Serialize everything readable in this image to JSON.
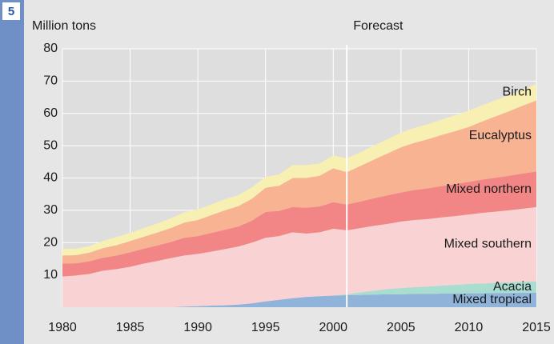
{
  "chart_data": {
    "type": "stacked_area",
    "badge": "5",
    "y_label": "Million tons",
    "annotations": [
      {
        "text": "Forecast",
        "x": 2001
      }
    ],
    "x": [
      1980,
      1981,
      1982,
      1983,
      1984,
      1985,
      1986,
      1987,
      1988,
      1989,
      1990,
      1991,
      1992,
      1993,
      1994,
      1995,
      1996,
      1997,
      1998,
      1999,
      2000,
      2001,
      2002,
      2003,
      2004,
      2005,
      2006,
      2007,
      2008,
      2009,
      2010,
      2011,
      2012,
      2013,
      2014,
      2015
    ],
    "xlim": [
      1980,
      2015
    ],
    "xticks": [
      1980,
      1985,
      1990,
      1995,
      2000,
      2005,
      2010,
      2015
    ],
    "ylim": [
      0,
      80
    ],
    "yticks": [
      10,
      20,
      30,
      40,
      50,
      60,
      70,
      80
    ],
    "grid": true,
    "series": [
      {
        "name": "Mixed tropical",
        "color": "#8fb3d9",
        "values": [
          0,
          0,
          0,
          0,
          0,
          0,
          0,
          0,
          0,
          0.2,
          0.3,
          0.5,
          0.6,
          0.8,
          1.2,
          1.8,
          2.3,
          2.8,
          3.2,
          3.4,
          3.6,
          3.7,
          3.8,
          3.9,
          4.0,
          4.0,
          4.1,
          4.1,
          4.2,
          4.2,
          4.3,
          4.3,
          4.4,
          4.4,
          4.5,
          4.5
        ]
      },
      {
        "name": "Acacia",
        "color": "#a9ddcf",
        "values": [
          0,
          0,
          0,
          0,
          0,
          0,
          0,
          0,
          0,
          0,
          0,
          0,
          0,
          0,
          0,
          0,
          0,
          0,
          0,
          0,
          0,
          0.3,
          0.8,
          1.2,
          1.6,
          1.9,
          2.1,
          2.3,
          2.5,
          2.7,
          2.9,
          3.0,
          3.2,
          3.3,
          3.4,
          3.5
        ]
      },
      {
        "name": "Mixed southern",
        "color": "#f9d3d3",
        "values": [
          9.5,
          9.8,
          10.3,
          11.3,
          11.8,
          12.5,
          13.5,
          14.3,
          15.2,
          15.8,
          16.2,
          16.7,
          17.4,
          18.0,
          18.8,
          19.7,
          19.7,
          20.4,
          19.6,
          19.8,
          20.7,
          19.8,
          19.9,
          20.1,
          20.2,
          20.6,
          20.8,
          20.9,
          21.1,
          21.3,
          21.5,
          21.9,
          22.0,
          22.3,
          22.6,
          23.0
        ]
      },
      {
        "name": "Mixed northern",
        "color": "#f28686",
        "values": [
          4.0,
          3.8,
          3.9,
          4.0,
          4.2,
          4.5,
          4.6,
          4.8,
          5.0,
          5.5,
          5.5,
          5.8,
          6.0,
          6.2,
          6.8,
          8.0,
          7.8,
          7.8,
          8.0,
          8.0,
          8.2,
          8.0,
          8.2,
          8.5,
          8.8,
          9.0,
          9.3,
          9.5,
          9.7,
          9.9,
          10.1,
          10.3,
          10.5,
          10.7,
          10.9,
          11.0
        ]
      },
      {
        "name": "Eucalyptus",
        "color": "#f7b392",
        "values": [
          2.5,
          2.5,
          2.7,
          3.0,
          3.2,
          3.5,
          3.7,
          4.0,
          4.3,
          4.7,
          5.0,
          5.5,
          6.0,
          6.3,
          6.8,
          7.5,
          7.8,
          9.0,
          9.2,
          9.5,
          10.5,
          10.0,
          11.0,
          12.0,
          13.0,
          14.0,
          14.6,
          15.2,
          15.8,
          16.4,
          17.0,
          18.0,
          19.0,
          20.0,
          21.0,
          22.0
        ]
      },
      {
        "name": "Birch",
        "color": "#f8f0b2",
        "values": [
          2,
          2,
          2,
          2.2,
          2.5,
          2.5,
          2.7,
          2.8,
          3,
          3.2,
          3.3,
          3.3,
          3.4,
          3.4,
          3.5,
          3.3,
          3.5,
          4,
          4,
          3.8,
          4,
          4.3,
          4.3,
          4.3,
          4.4,
          4.5,
          4.6,
          4.7,
          4.8,
          4.9,
          5,
          5,
          5,
          5,
          5,
          5
        ]
      }
    ]
  }
}
